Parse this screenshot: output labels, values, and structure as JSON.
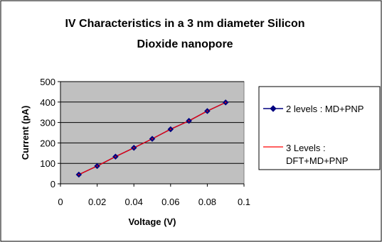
{
  "chart_data": {
    "type": "line",
    "title_lines": [
      "IV Characteristics in a 3 nm diameter Silicon",
      "Dioxide nanopore"
    ],
    "xlabel": "Voltage (V)",
    "ylabel": "Current (pA)",
    "xlim": [
      0,
      0.1
    ],
    "ylim": [
      0,
      500
    ],
    "x_ticks": [
      "0",
      "0.02",
      "0.04",
      "0.06",
      "0.08",
      "0.1"
    ],
    "y_ticks": [
      "0",
      "100",
      "200",
      "300",
      "400",
      "500"
    ],
    "grid": "horizontal",
    "plot_background": "#c0c0c0",
    "legend_position": "right",
    "series": [
      {
        "name": "2 levels  : MD+PNP",
        "color": "#000080",
        "marker": "diamond",
        "x": [
          0.01,
          0.02,
          0.03,
          0.04,
          0.05,
          0.06,
          0.07,
          0.08,
          0.09
        ],
        "y": [
          45,
          87,
          133,
          176,
          220,
          267,
          308,
          356,
          398
        ]
      },
      {
        "name_lines": [
          "3 Levels :",
          "DFT+MD+PNP"
        ],
        "color": "#ff0000",
        "marker": "none",
        "x": [
          0.01,
          0.02,
          0.03,
          0.04,
          0.05,
          0.06,
          0.07,
          0.08,
          0.09
        ],
        "y": [
          45,
          87,
          133,
          176,
          220,
          267,
          308,
          356,
          398
        ]
      }
    ]
  }
}
